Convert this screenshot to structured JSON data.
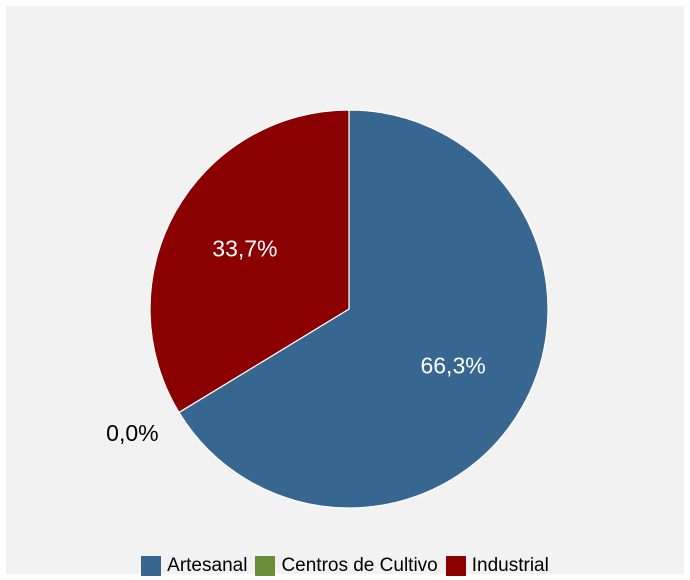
{
  "chart_data": {
    "type": "pie",
    "series": [
      {
        "name": "Artesanal",
        "value": 66.3,
        "label": "66,3%",
        "color": "#376690"
      },
      {
        "name": "Centros de Cultivo",
        "value": 0.0,
        "label": "0,0%",
        "color": "#6b8e3a"
      },
      {
        "name": "Industrial",
        "value": 33.7,
        "label": "33,7%",
        "color": "#8b0000"
      }
    ],
    "legend_position": "bottom"
  }
}
